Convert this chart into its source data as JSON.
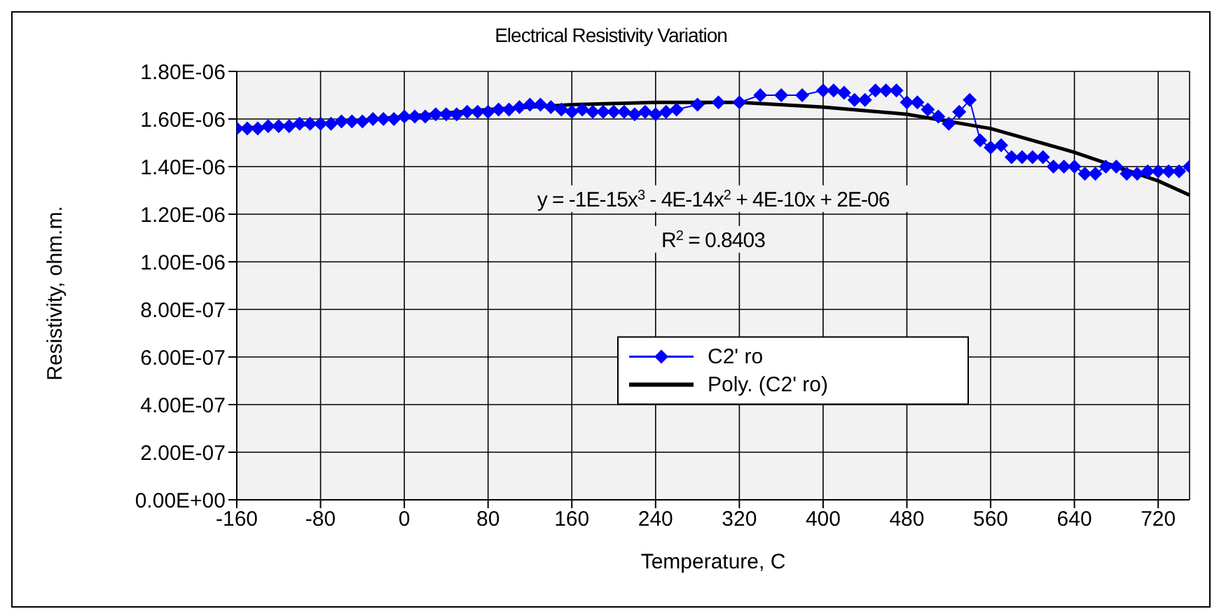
{
  "chart_data": {
    "type": "line",
    "title": "Electrical Resistivity Variation",
    "xlabel": "Temperature, C",
    "ylabel": "Resistivity, ohm.m.",
    "annotations": [
      "y = -1E-15x$^{3}$ - 4E-14x$^{2}$ + 4E-10x + 2E-06",
      "R$^{2}$ = 0.8403"
    ],
    "xlim": [
      -160,
      750
    ],
    "xticks": [
      -160,
      -80,
      0,
      80,
      160,
      240,
      320,
      400,
      480,
      560,
      640,
      720
    ],
    "ylim": [
      0,
      1.8e-06
    ],
    "yticks": [
      {
        "value": 0,
        "label": "0.00E+00"
      },
      {
        "value": 2e-07,
        "label": "2.00E-07"
      },
      {
        "value": 4e-07,
        "label": "4.00E-07"
      },
      {
        "value": 6e-07,
        "label": "6.00E-07"
      },
      {
        "value": 8e-07,
        "label": "8.00E-07"
      },
      {
        "value": 1e-06,
        "label": "1.00E-06"
      },
      {
        "value": 1.2e-06,
        "label": "1.20E-06"
      },
      {
        "value": 1.4e-06,
        "label": "1.40E-06"
      },
      {
        "value": 1.6e-06,
        "label": "1.60E-06"
      },
      {
        "value": 1.8e-06,
        "label": "1.80E-06"
      }
    ],
    "grid": true,
    "legend": "bottom",
    "line_style": "solid",
    "series": [
      {
        "name": "C2' ro",
        "color": "#0000ff",
        "marker": "diamond",
        "x": [
          -160,
          -150,
          -140,
          -130,
          -120,
          -110,
          -100,
          -90,
          -80,
          -70,
          -60,
          -50,
          -40,
          -30,
          -20,
          -10,
          0,
          10,
          20,
          30,
          40,
          50,
          60,
          70,
          80,
          90,
          100,
          110,
          120,
          130,
          140,
          150,
          160,
          170,
          180,
          190,
          200,
          210,
          220,
          230,
          240,
          250,
          260,
          280,
          300,
          320,
          340,
          360,
          380,
          400,
          410,
          420,
          430,
          440,
          450,
          460,
          470,
          480,
          490,
          500,
          510,
          520,
          530,
          540,
          550,
          560,
          570,
          580,
          590,
          600,
          610,
          620,
          630,
          640,
          650,
          660,
          670,
          680,
          690,
          700,
          710,
          720,
          730,
          740,
          750
        ],
        "values": [
          1.56e-06,
          1.56e-06,
          1.56e-06,
          1.57e-06,
          1.57e-06,
          1.57e-06,
          1.58e-06,
          1.58e-06,
          1.58e-06,
          1.58e-06,
          1.59e-06,
          1.59e-06,
          1.59e-06,
          1.6e-06,
          1.6e-06,
          1.6e-06,
          1.61e-06,
          1.61e-06,
          1.61e-06,
          1.62e-06,
          1.62e-06,
          1.62e-06,
          1.63e-06,
          1.63e-06,
          1.63e-06,
          1.64e-06,
          1.64e-06,
          1.65e-06,
          1.66e-06,
          1.66e-06,
          1.65e-06,
          1.64e-06,
          1.63e-06,
          1.64e-06,
          1.63e-06,
          1.63e-06,
          1.63e-06,
          1.63e-06,
          1.62e-06,
          1.63e-06,
          1.62e-06,
          1.63e-06,
          1.64e-06,
          1.66e-06,
          1.67e-06,
          1.67e-06,
          1.7e-06,
          1.7e-06,
          1.7e-06,
          1.72e-06,
          1.72e-06,
          1.71e-06,
          1.68e-06,
          1.68e-06,
          1.72e-06,
          1.72e-06,
          1.72e-06,
          1.67e-06,
          1.67e-06,
          1.64e-06,
          1.61e-06,
          1.58e-06,
          1.63e-06,
          1.68e-06,
          1.51e-06,
          1.48e-06,
          1.49e-06,
          1.44e-06,
          1.44e-06,
          1.44e-06,
          1.44e-06,
          1.4e-06,
          1.4e-06,
          1.4e-06,
          1.37e-06,
          1.37e-06,
          1.4e-06,
          1.4e-06,
          1.37e-06,
          1.37e-06,
          1.38e-06,
          1.38e-06,
          1.38e-06,
          1.38e-06,
          1.4e-06
        ]
      },
      {
        "name": "Poly. (C2' ro)",
        "color": "#000000",
        "marker": "none",
        "type": "line",
        "x": [
          -160,
          -80,
          0,
          80,
          160,
          240,
          320,
          400,
          480,
          560,
          640,
          720,
          750
        ],
        "values": [
          1.56e-06,
          1.58e-06,
          1.61e-06,
          1.64e-06,
          1.66e-06,
          1.67e-06,
          1.67e-06,
          1.65e-06,
          1.62e-06,
          1.56e-06,
          1.46e-06,
          1.34e-06,
          1.28e-06
        ]
      }
    ]
  }
}
